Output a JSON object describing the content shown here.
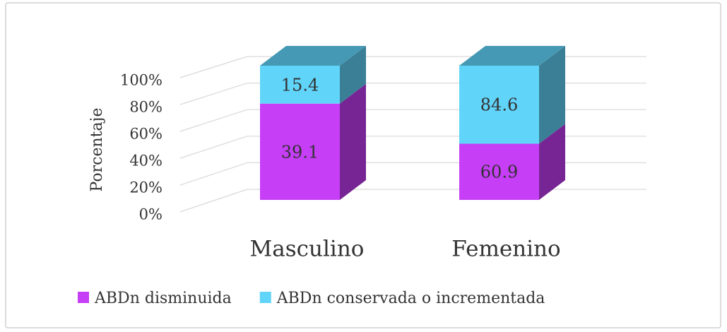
{
  "chart_data": {
    "type": "bar",
    "stacked": "percent",
    "y_label": "Porcentaje",
    "categories": [
      "Masculino",
      "Femenino"
    ],
    "series": [
      {
        "name": "ABDn disminuida",
        "color": "#c63ef6",
        "values": [
          39.1,
          60.9
        ]
      },
      {
        "name": "ABDn conservada o incrementada",
        "color": "#61d4fa",
        "values": [
          15.4,
          84.6
        ]
      }
    ],
    "ylim": [
      0,
      100
    ],
    "yticks": [
      {
        "value": 0,
        "label": "0%"
      },
      {
        "value": 20,
        "label": "20%"
      },
      {
        "value": 40,
        "label": "40%"
      },
      {
        "value": 60,
        "label": "60%"
      },
      {
        "value": 80,
        "label": "80%"
      },
      {
        "value": 100,
        "label": "100%"
      }
    ],
    "grid": true,
    "legend": "bottom"
  }
}
